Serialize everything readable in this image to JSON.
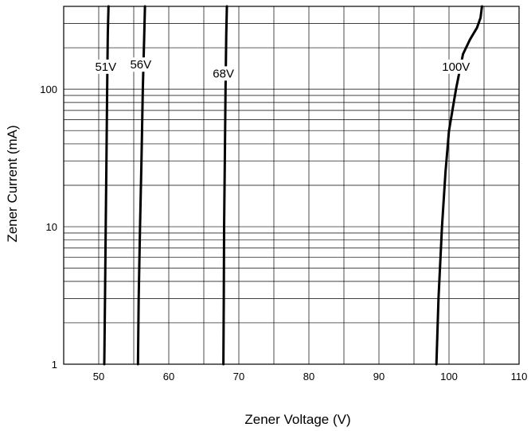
{
  "chart_data": {
    "type": "line",
    "title": "",
    "xlabel": "Zener Voltage (V)",
    "ylabel": "Zener Current (mA)",
    "xlim": [
      45,
      110
    ],
    "ylim": [
      1,
      400
    ],
    "yscale": "log",
    "grid": true,
    "legend": "none",
    "x_ticks": [
      50,
      60,
      70,
      80,
      90,
      100,
      110
    ],
    "y_ticks": [
      1,
      10,
      100
    ],
    "series": [
      {
        "name": "51V",
        "x": [
          50.8,
          50.9,
          51.0,
          51.1,
          51.2,
          51.3,
          51.4
        ],
        "y": [
          1,
          3,
          10,
          30,
          100,
          250,
          400
        ]
      },
      {
        "name": "56V",
        "x": [
          55.6,
          55.7,
          55.9,
          56.1,
          56.3,
          56.5,
          56.6
        ],
        "y": [
          1,
          3,
          10,
          30,
          100,
          250,
          400
        ]
      },
      {
        "name": "68V",
        "x": [
          67.8,
          67.85,
          67.9,
          68.0,
          68.1,
          68.2,
          68.3
        ],
        "y": [
          1,
          3,
          10,
          30,
          100,
          250,
          400
        ]
      },
      {
        "name": "100V",
        "x": [
          98.2,
          98.5,
          99.0,
          99.5,
          100.0,
          101.0,
          102.0,
          103.0,
          104.0,
          104.5,
          104.7
        ],
        "y": [
          1,
          3,
          10,
          25,
          50,
          100,
          180,
          230,
          280,
          330,
          400
        ]
      }
    ],
    "curve_labels": [
      {
        "text": "51V",
        "x": 51.0,
        "y": 140
      },
      {
        "text": "56V",
        "x": 56.0,
        "y": 145
      },
      {
        "text": "68V",
        "x": 67.8,
        "y": 125
      },
      {
        "text": "100V",
        "x": 101.0,
        "y": 140
      }
    ]
  }
}
